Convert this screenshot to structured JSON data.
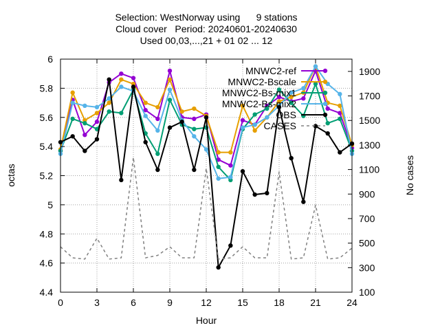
{
  "chart_data": {
    "type": "line",
    "title_lines": [
      "Selection: WestNorway using      9 stations",
      "Cloud cover   Period: 20240601-20240630",
      "Used 00,03,...,21 + 01 02 ... 12"
    ],
    "xlabel": "Hour",
    "ylabel": "octas",
    "y2label": "No cases",
    "xlim": [
      0,
      24
    ],
    "ylim": [
      4.4,
      6.0
    ],
    "y2lim": [
      100,
      2000
    ],
    "x_ticks": [
      "0",
      "3",
      "6",
      "9",
      "12",
      "15",
      "18",
      "21",
      "24"
    ],
    "y_ticks": [
      "4.4",
      "4.6",
      "4.8",
      "5",
      "5.2",
      "5.4",
      "5.6",
      "5.8",
      "6"
    ],
    "y2_ticks": [
      "100",
      "300",
      "500",
      "700",
      "900",
      "1100",
      "1300",
      "1500",
      "1700",
      "1900"
    ],
    "grid": true,
    "legend_position": "top-right",
    "x": [
      0,
      1,
      2,
      3,
      4,
      5,
      6,
      7,
      8,
      9,
      10,
      11,
      12,
      13,
      14,
      15,
      16,
      17,
      18,
      19,
      20,
      21,
      22,
      23,
      24
    ],
    "series": [
      {
        "name": "MNWC2-ref",
        "color": "#9400d3",
        "marker": "circle",
        "axis": "y",
        "values": [
          5.37,
          5.72,
          5.48,
          5.57,
          5.84,
          5.9,
          5.87,
          5.65,
          5.59,
          5.92,
          5.6,
          5.59,
          5.62,
          5.31,
          5.27,
          5.58,
          5.55,
          5.68,
          5.74,
          5.71,
          5.73,
          5.92,
          5.66,
          5.63,
          5.39
        ]
      },
      {
        "name": "MNWC2-Bscale",
        "color": "#e69f00",
        "marker": "circle",
        "axis": "y",
        "values": [
          5.38,
          5.77,
          5.58,
          5.63,
          5.7,
          5.86,
          5.83,
          5.7,
          5.67,
          5.86,
          5.64,
          5.66,
          5.61,
          5.36,
          5.36,
          5.68,
          5.51,
          5.6,
          5.71,
          5.74,
          5.77,
          5.95,
          5.7,
          5.68,
          5.41
        ]
      },
      {
        "name": "MNWC2-Bs-mix1",
        "color": "#009e73",
        "marker": "circle",
        "axis": "y",
        "values": [
          5.37,
          5.59,
          5.56,
          5.52,
          5.64,
          5.63,
          5.79,
          5.49,
          5.35,
          5.72,
          5.55,
          5.52,
          5.53,
          5.26,
          5.17,
          5.52,
          5.62,
          5.66,
          5.79,
          5.7,
          5.61,
          5.83,
          5.56,
          5.59,
          5.37
        ]
      },
      {
        "name": "MNWC2-Bs-mix2",
        "color": "#56b4e9",
        "marker": "circle",
        "axis": "y",
        "values": [
          5.35,
          5.7,
          5.68,
          5.67,
          5.73,
          5.81,
          5.78,
          5.61,
          5.51,
          5.79,
          5.58,
          5.47,
          5.38,
          5.18,
          5.19,
          5.53,
          5.55,
          5.6,
          5.68,
          5.77,
          5.8,
          5.95,
          5.83,
          5.76,
          5.35
        ]
      },
      {
        "name": "OBS",
        "color": "#000000",
        "marker": "circle",
        "axis": "y",
        "values": [
          5.43,
          5.47,
          5.37,
          5.45,
          5.86,
          5.17,
          5.81,
          5.43,
          5.24,
          5.53,
          5.57,
          5.24,
          5.6,
          4.57,
          4.72,
          5.23,
          5.07,
          5.08,
          5.67,
          5.32,
          5.02,
          5.54,
          5.49,
          5.36,
          5.42
        ]
      },
      {
        "name": "CASES",
        "color": "#808080",
        "marker": "none",
        "dashed": true,
        "axis": "y2",
        "values": [
          470,
          380,
          370,
          540,
          370,
          380,
          1200,
          380,
          400,
          470,
          380,
          380,
          1110,
          370,
          380,
          470,
          380,
          380,
          1080,
          370,
          380,
          810,
          370,
          380,
          460
        ]
      }
    ]
  }
}
